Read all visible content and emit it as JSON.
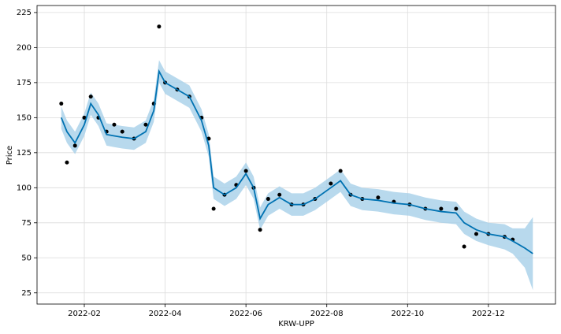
{
  "chart_data": {
    "type": "forecast",
    "x_label": "KRW-UPP",
    "y_label": "Price",
    "x": [
      0.43,
      0.57,
      0.77,
      1.0,
      1.16,
      1.35,
      1.55,
      1.74,
      1.94,
      2.23,
      2.52,
      2.72,
      2.85,
      3.0,
      3.3,
      3.6,
      3.9,
      4.08,
      4.2,
      4.47,
      4.76,
      5.0,
      5.19,
      5.35,
      5.55,
      5.83,
      6.13,
      6.42,
      6.71,
      7.1,
      7.34,
      7.59,
      7.88,
      8.27,
      8.66,
      9.05,
      9.44,
      9.83,
      10.2,
      10.4,
      10.7,
      11.0,
      11.4,
      11.6,
      11.9,
      12.1
    ],
    "actual": {
      "color": "#000000",
      "values": [
        160,
        118,
        130,
        150,
        165,
        150,
        140,
        145,
        140,
        135,
        145,
        160,
        215,
        175,
        170,
        165,
        150,
        135,
        85,
        95,
        102,
        112,
        100,
        70,
        92,
        95,
        88,
        88,
        92,
        103,
        112,
        95,
        92,
        93,
        90,
        88,
        85,
        85,
        85,
        58,
        67,
        67,
        65,
        63,
        null,
        null
      ]
    },
    "forecast": {
      "color": "#0072B2",
      "values": [
        150,
        140,
        132,
        145,
        160,
        152,
        138,
        137,
        136,
        135,
        140,
        155,
        183,
        175,
        170,
        165,
        148,
        130,
        100,
        95,
        100,
        110,
        100,
        78,
        88,
        93,
        88,
        88,
        92,
        100,
        105,
        95,
        92,
        91,
        89,
        88,
        85,
        83,
        82,
        75,
        70,
        67,
        65,
        62,
        57,
        53
      ]
    },
    "upper": [
      158,
      148,
      140,
      153,
      168,
      160,
      146,
      145,
      144,
      143,
      148,
      163,
      191,
      183,
      178,
      173,
      156,
      138,
      108,
      103,
      108,
      118,
      108,
      86,
      96,
      101,
      96,
      96,
      100,
      108,
      113,
      103,
      100,
      99,
      97,
      96,
      93,
      91,
      90,
      83,
      78,
      75,
      74,
      71,
      71,
      79
    ],
    "lower": [
      142,
      132,
      124,
      137,
      152,
      144,
      130,
      129,
      128,
      127,
      132,
      147,
      175,
      167,
      162,
      157,
      140,
      122,
      92,
      87,
      92,
      102,
      92,
      70,
      80,
      85,
      80,
      80,
      84,
      92,
      97,
      87,
      84,
      83,
      81,
      80,
      77,
      75,
      74,
      67,
      62,
      59,
      56,
      53,
      43,
      27
    ],
    "band_color": "#a6cfe8",
    "xlim": [
      -0.17,
      12.66
    ],
    "xticks": [
      {
        "value": 1,
        "label": "2022-02"
      },
      {
        "value": 3,
        "label": "2022-04"
      },
      {
        "value": 5,
        "label": "2022-06"
      },
      {
        "value": 7,
        "label": "2022-08"
      },
      {
        "value": 9,
        "label": "2022-10"
      },
      {
        "value": 11,
        "label": "2022-12"
      }
    ],
    "ylim": [
      17,
      230
    ],
    "yticks": [
      25,
      50,
      75,
      100,
      125,
      150,
      175,
      200,
      225
    ],
    "grid": true
  }
}
